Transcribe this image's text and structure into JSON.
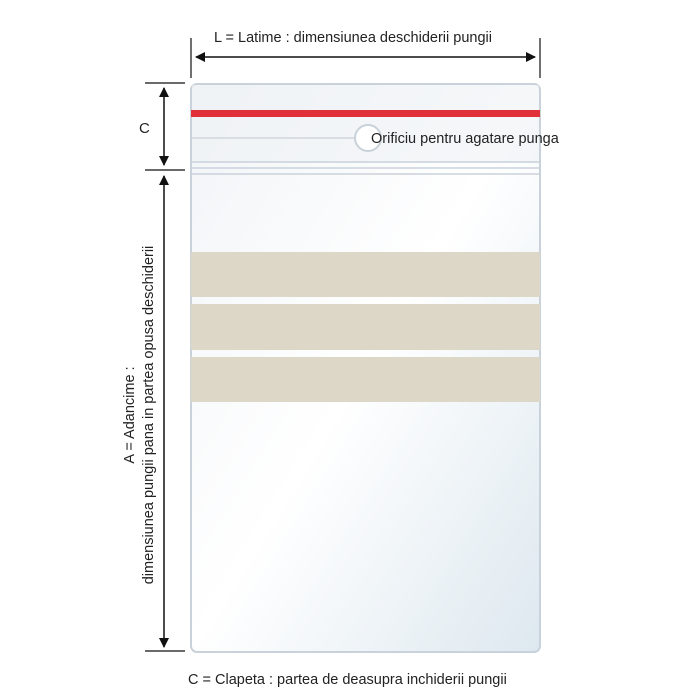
{
  "labels": {
    "width": "L = Latime : dimensiunea deschiderii pungii",
    "hole": "Orificiu pentru agatare punga",
    "flap_short": "C",
    "depth_title": "A = Adancime :",
    "depth_desc": "dimensiunea pungii pana in partea opusa deschiderii",
    "flap_def": "C = Clapeta : partea de deasupra inchiderii pungii"
  },
  "colors": {
    "closure_stripe": "#e0313a",
    "writing_bands": "#ddd7c7",
    "bag_outline": "#c9d2da"
  }
}
